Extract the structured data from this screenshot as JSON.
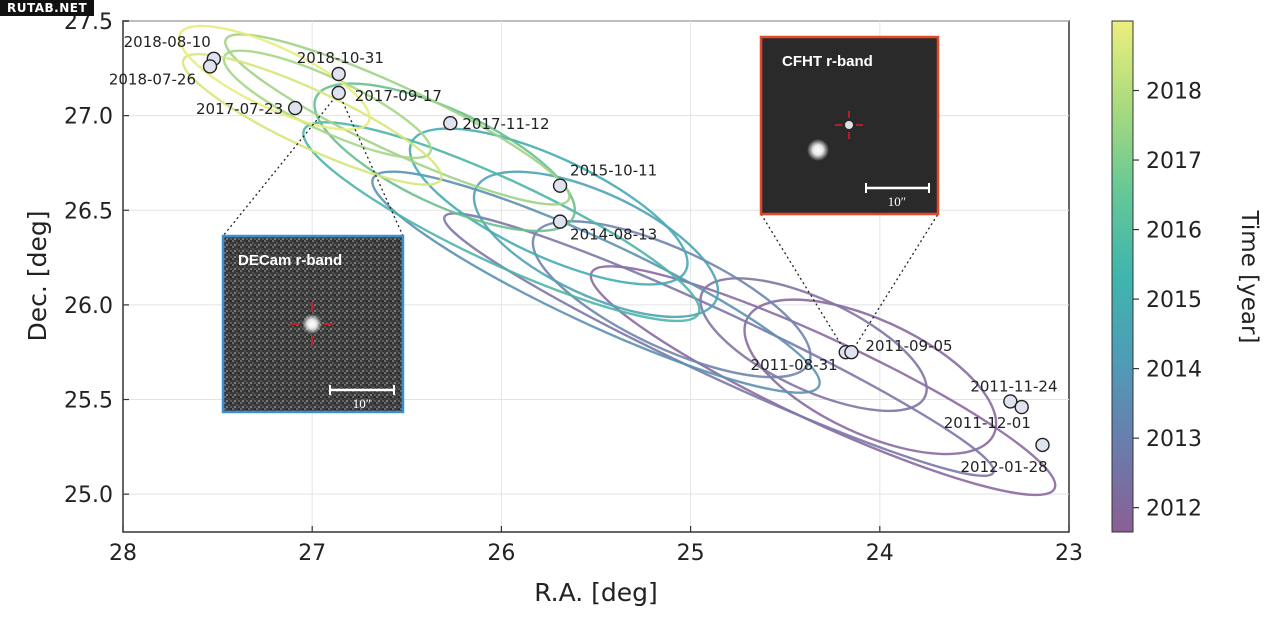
{
  "watermark": "RUTAB.NET",
  "chart_data": {
    "type": "scatter",
    "title": "",
    "xlabel": "R.A. [deg]",
    "ylabel": "Dec. [deg]",
    "xlim": [
      28,
      23
    ],
    "ylim": [
      24.8,
      27.5
    ],
    "xticks": [
      28,
      27,
      26,
      25,
      24,
      23
    ],
    "xtick_labels": [
      "28",
      "27",
      "26",
      "25",
      "24",
      "23"
    ],
    "yticks": [
      25.0,
      25.5,
      26.0,
      26.5,
      27.0,
      27.5
    ],
    "ytick_labels": [
      "25.0",
      "25.5",
      "26.0",
      "26.5",
      "27.0",
      "27.5"
    ],
    "grid": true,
    "colorbar": {
      "label": "Time [year]",
      "range": [
        2011.65,
        2019.0
      ],
      "ticks": [
        2012,
        2013,
        2014,
        2015,
        2016,
        2017,
        2018
      ],
      "tick_labels": [
        "2012",
        "2013",
        "2014",
        "2015",
        "2016",
        "2017",
        "2018"
      ],
      "colormap": "viridis",
      "colors": [
        "#8a5f94",
        "#6a7cad",
        "#4f9bb8",
        "#3fb5ad",
        "#66c896",
        "#a8da7f",
        "#ecef7c"
      ]
    },
    "points": [
      {
        "label": "2018-08-10",
        "ra": 27.52,
        "dec": 27.3
      },
      {
        "label": "2018-07-26",
        "ra": 27.54,
        "dec": 27.26
      },
      {
        "label": "2018-10-31",
        "ra": 26.86,
        "dec": 27.22
      },
      {
        "label": "2017-09-17",
        "ra": 26.86,
        "dec": 27.12
      },
      {
        "label": "2017-07-23",
        "ra": 27.09,
        "dec": 27.04
      },
      {
        "label": "2017-11-12",
        "ra": 26.27,
        "dec": 26.96
      },
      {
        "label": "2015-10-11",
        "ra": 25.69,
        "dec": 26.63
      },
      {
        "label": "2014-08-13",
        "ra": 25.69,
        "dec": 26.44
      },
      {
        "label": "2011-08-31",
        "ra": 24.18,
        "dec": 25.75
      },
      {
        "label": "2011-09-05",
        "ra": 24.15,
        "dec": 25.75
      },
      {
        "label": "2011-11-24",
        "ra": 23.31,
        "dec": 25.49
      },
      {
        "label": "2011-12-01",
        "ra": 23.25,
        "dec": 25.46
      },
      {
        "label": "2012-01-28",
        "ra": 23.14,
        "dec": 25.26
      }
    ],
    "error_ellipses": [
      {
        "ra": 24.05,
        "dec": 25.62,
        "sa": 0.72,
        "sb": 0.3,
        "color": "#8a6a9c"
      },
      {
        "ra": 24.3,
        "dec": 25.6,
        "sa": 1.35,
        "sb": 0.22,
        "color": "#8b6aa0"
      },
      {
        "ra": 24.35,
        "dec": 25.79,
        "sa": 0.65,
        "sb": 0.24,
        "color": "#8274a4"
      },
      {
        "ra": 24.85,
        "dec": 25.79,
        "sa": 1.6,
        "sb": 0.17,
        "color": "#7c78a8"
      },
      {
        "ra": 25.1,
        "dec": 26.03,
        "sa": 0.8,
        "sb": 0.26,
        "color": "#6f84ae"
      },
      {
        "ra": 25.5,
        "dec": 26.12,
        "sa": 1.3,
        "sb": 0.22,
        "color": "#5b92b2"
      },
      {
        "ra": 25.5,
        "dec": 26.32,
        "sa": 0.7,
        "sb": 0.27,
        "color": "#4fa3b6"
      },
      {
        "ra": 25.75,
        "dec": 26.52,
        "sa": 0.8,
        "sb": 0.26,
        "color": "#45acb4"
      },
      {
        "ra": 26.0,
        "dec": 26.44,
        "sa": 1.15,
        "sb": 0.22,
        "color": "#4cb5a8"
      },
      {
        "ra": 26.3,
        "dec": 26.78,
        "sa": 0.75,
        "sb": 0.25,
        "color": "#68c08f"
      },
      {
        "ra": 26.55,
        "dec": 26.98,
        "sa": 1.0,
        "sb": 0.17,
        "color": "#a0d386"
      },
      {
        "ra": 26.92,
        "dec": 27.06,
        "sa": 0.6,
        "sb": 0.14,
        "color": "#a6d686"
      },
      {
        "ra": 27.0,
        "dec": 26.98,
        "sa": 0.75,
        "sb": 0.15,
        "color": "#d7e57c"
      },
      {
        "ra": 27.2,
        "dec": 27.2,
        "sa": 0.55,
        "sb": 0.16,
        "color": "#e8ec7b"
      }
    ],
    "insets": [
      {
        "label": "DECam r-band",
        "scale_label": "10″",
        "frame_color": "#3a8fd1",
        "points_to": [
          "2017-09-17"
        ]
      },
      {
        "label": "CFHT r-band",
        "scale_label": "10″",
        "frame_color": "#e04a2a",
        "points_to": [
          "2011-08-31",
          "2011-09-05"
        ]
      }
    ]
  }
}
